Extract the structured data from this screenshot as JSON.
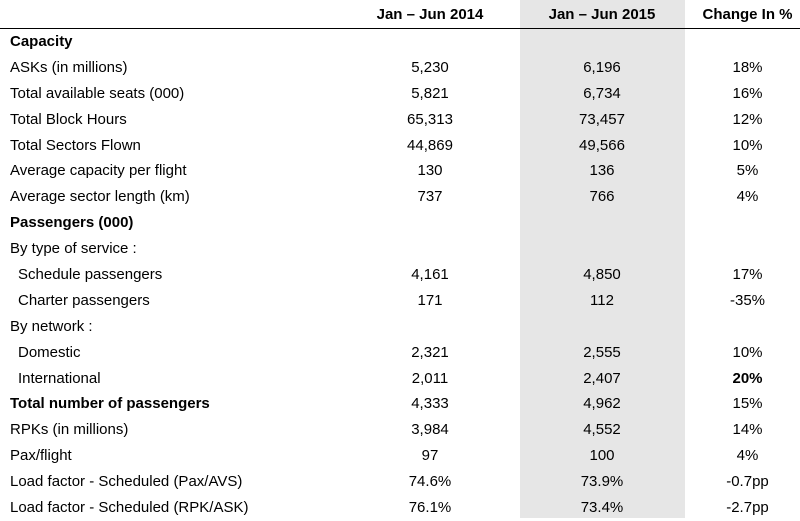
{
  "columns": {
    "col1": "Jan – Jun 2014",
    "col2": "Jan – Jun 2015",
    "col3": "Change In %"
  },
  "rows": [
    {
      "label": "Capacity",
      "v1": "",
      "v2": "",
      "v3": ""
    },
    {
      "label": "ASKs (in millions)",
      "v1": "5,230",
      "v2": "6,196",
      "v3": "18%"
    },
    {
      "label": "Total available seats (000)",
      "v1": "5,821",
      "v2": "6,734",
      "v3": "16%"
    },
    {
      "label": "Total Block Hours",
      "v1": "65,313",
      "v2": "73,457",
      "v3": "12%"
    },
    {
      "label": "Total Sectors Flown",
      "v1": "44,869",
      "v2": "49,566",
      "v3": "10%"
    },
    {
      "label": "Average capacity per flight",
      "v1": "130",
      "v2": "136",
      "v3": "5%"
    },
    {
      "label": "Average sector length (km)",
      "v1": "737",
      "v2": "766",
      "v3": "4%"
    },
    {
      "label": "Passengers (000)",
      "v1": "",
      "v2": "",
      "v3": ""
    },
    {
      "label": "By type of service :",
      "v1": "",
      "v2": "",
      "v3": ""
    },
    {
      "label": "Schedule passengers",
      "v1": "4,161",
      "v2": "4,850",
      "v3": "17%"
    },
    {
      "label": "Charter passengers",
      "v1": "171",
      "v2": "112",
      "v3": "-35%"
    },
    {
      "label": "By network :",
      "v1": "",
      "v2": "",
      "v3": ""
    },
    {
      "label": "Domestic",
      "v1": "2,321",
      "v2": "2,555",
      "v3": "10%"
    },
    {
      "label": "International",
      "v1": "2,011",
      "v2": "2,407",
      "v3": "20%"
    },
    {
      "label": "Total number of passengers",
      "v1": "4,333",
      "v2": "4,962",
      "v3": "15%"
    },
    {
      "label": "RPKs (in millions)",
      "v1": "3,984",
      "v2": "4,552",
      "v3": "14%"
    },
    {
      "label": "Pax/flight",
      "v1": "97",
      "v2": "100",
      "v3": "4%"
    },
    {
      "label": "Load factor  - Scheduled (Pax/AVS)",
      "v1": "74.6%",
      "v2": "73.9%",
      "v3": "-0.7pp"
    },
    {
      "label": "Load factor  - Scheduled (RPK/ASK)",
      "v1": "76.1%",
      "v2": "73.4%",
      "v3": "-2.7pp"
    }
  ]
}
